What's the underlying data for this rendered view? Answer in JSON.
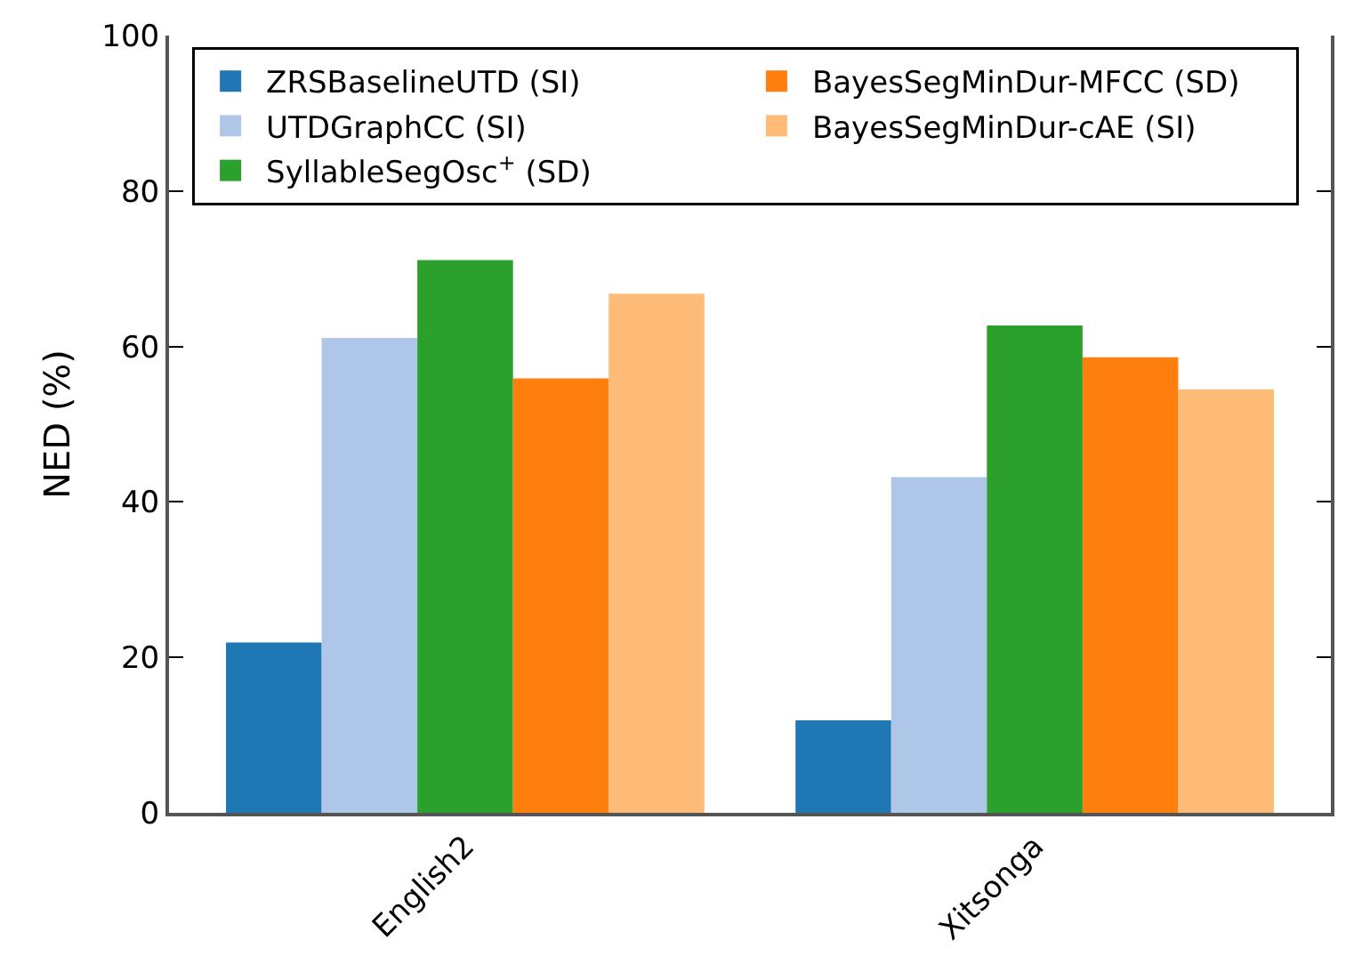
{
  "chart_data": {
    "type": "bar",
    "ylabel": "NED (%)",
    "categories": [
      "English2",
      "Xitsonga"
    ],
    "series": [
      {
        "name": "ZRSBaselineUTD (SI)",
        "color": "#1f77b4",
        "values": [
          21.9,
          11.9
        ]
      },
      {
        "name": "UTDGraphCC (SI)",
        "color": "#aec7e8",
        "values": [
          61.1,
          43.2
        ]
      },
      {
        "name": "SyllableSegOsc$^{+}$ (SD)",
        "color": "#2ca02c",
        "values": [
          71.1,
          62.7
        ]
      },
      {
        "name": "BayesSegMinDur-MFCC (SD)",
        "color": "#ff7f0e",
        "values": [
          55.9,
          58.6
        ]
      },
      {
        "name": "BayesSegMinDur-cAE (SI)",
        "color": "#ffbb78",
        "values": [
          66.8,
          54.5
        ]
      }
    ],
    "ylim": [
      0,
      100
    ],
    "yticks": [
      0,
      20,
      40,
      60,
      80,
      100
    ],
    "grid": false,
    "legend": "top"
  }
}
